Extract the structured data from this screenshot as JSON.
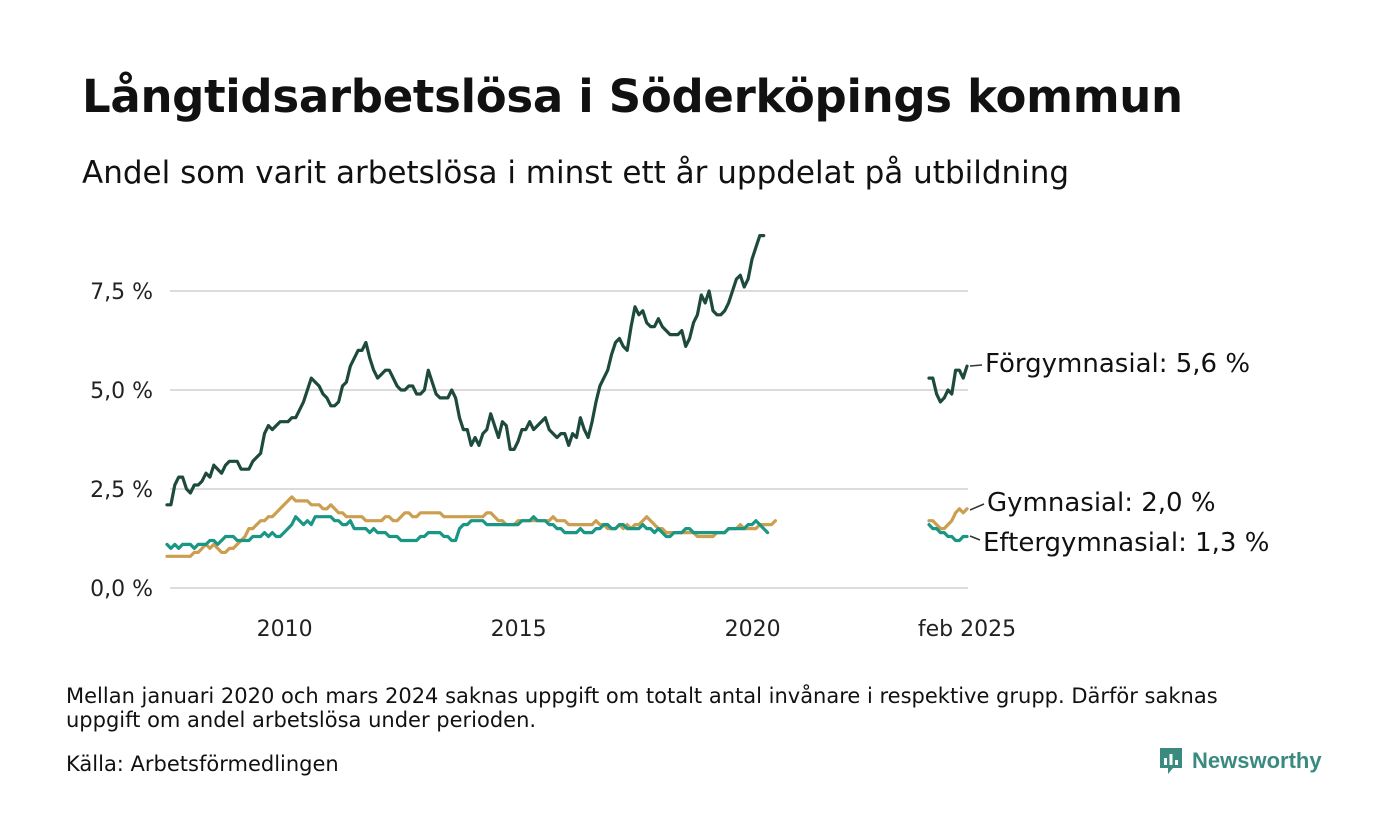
{
  "title": "Långtidsarbetslösa i Söderköpings kommun",
  "subtitle": "Andel som varit arbetslösa i minst ett år uppdelat på utbildning",
  "footnote": "Mellan januari 2020 och mars 2024 saknas uppgift om totalt antal invånare i respektive grupp. Därför saknas uppgift om andel arbetslösa under perioden.",
  "source": "Källa: Arbetsförmedlingen",
  "brand": "Newsworthy",
  "colors": {
    "forgymnasial": "#1e4a3e",
    "gymnasial": "#cc9e4f",
    "eftergymnasial": "#1a9684",
    "grid": "#dcdcdc",
    "brand": "#3a8a80"
  },
  "chart_data": {
    "type": "line",
    "y_tick_labels": [
      "0,0 %",
      "2,5 %",
      "5,0 %",
      "7,5 %"
    ],
    "y_ticks": [
      0,
      2.5,
      5.0,
      7.5
    ],
    "ylim": [
      0,
      9
    ],
    "x_tick_labels": [
      "2010",
      "2015",
      "2020",
      "feb 2025"
    ],
    "grid": "horizontal",
    "series": [
      {
        "name": "Förgymnasial",
        "label": "Förgymnasial: 5,6 %",
        "color_key": "forgymnasial",
        "segments": [
          {
            "from": "2008-01",
            "values": [
              2.1,
              2.1,
              2.6,
              2.8,
              2.8,
              2.5,
              2.4,
              2.6,
              2.6,
              2.7,
              2.9,
              2.8,
              3.1,
              3.0,
              2.9,
              3.1,
              3.2,
              3.2,
              3.2,
              3.0,
              3.0,
              3.0,
              3.2,
              3.3,
              3.4,
              3.9,
              4.1,
              4.0,
              4.1,
              4.2,
              4.2,
              4.2,
              4.3,
              4.3,
              4.5,
              4.7,
              5.0,
              5.3,
              5.2,
              5.1,
              4.9,
              4.8,
              4.6,
              4.6,
              4.7,
              5.1,
              5.2,
              5.6,
              5.8,
              6.0,
              6.0,
              6.2,
              5.8,
              5.5,
              5.3,
              5.4,
              5.5,
              5.5,
              5.3,
              5.1,
              5.0,
              5.0,
              5.1,
              5.1,
              4.9,
              4.9,
              5.0,
              5.5,
              5.2,
              4.9,
              4.8,
              4.8,
              4.8,
              5.0,
              4.8,
              4.3,
              4.0,
              4.0,
              3.6,
              3.8,
              3.6,
              3.9,
              4.0,
              4.4,
              4.1,
              3.8,
              4.2,
              4.1,
              3.5,
              3.5,
              3.7,
              4.0,
              4.0,
              4.2,
              4.0,
              4.1,
              4.2,
              4.3,
              4.0,
              3.9,
              3.8,
              3.9,
              3.9,
              3.6,
              3.9,
              3.8,
              4.3,
              4.0,
              3.8,
              4.2,
              4.7,
              5.1,
              5.3,
              5.5,
              5.9,
              6.2,
              6.3,
              6.1,
              6.0,
              6.6,
              7.1,
              6.9,
              7.0,
              6.7,
              6.6,
              6.6,
              6.8,
              6.6,
              6.5,
              6.4,
              6.4,
              6.4,
              6.5,
              6.1,
              6.3,
              6.7,
              6.9,
              7.4,
              7.2,
              7.5,
              7.0,
              6.9,
              6.9,
              7.0,
              7.2,
              7.5,
              7.8,
              7.9,
              7.6,
              7.8,
              8.3,
              8.6,
              8.9,
              8.9
            ]
          },
          {
            "from": "2024-03",
            "values": [
              5.3,
              5.3,
              4.9,
              4.7,
              4.8,
              5.0,
              4.9,
              5.5,
              5.5,
              5.3,
              5.6
            ]
          }
        ]
      },
      {
        "name": "Gymnasial",
        "label": "Gymnasial: 2,0 %",
        "color_key": "gymnasial",
        "segments": [
          {
            "from": "2008-01",
            "values": [
              0.8,
              0.8,
              0.8,
              0.8,
              0.8,
              0.8,
              0.8,
              0.9,
              0.9,
              1.0,
              1.1,
              1.0,
              1.1,
              1.0,
              0.9,
              0.9,
              1.0,
              1.0,
              1.1,
              1.2,
              1.3,
              1.5,
              1.5,
              1.6,
              1.7,
              1.7,
              1.8,
              1.8,
              1.9,
              2.0,
              2.1,
              2.2,
              2.3,
              2.2,
              2.2,
              2.2,
              2.2,
              2.1,
              2.1,
              2.1,
              2.0,
              2.0,
              2.1,
              2.0,
              1.9,
              1.9,
              1.8,
              1.8,
              1.8,
              1.8,
              1.8,
              1.7,
              1.7,
              1.7,
              1.7,
              1.7,
              1.8,
              1.8,
              1.7,
              1.7,
              1.8,
              1.9,
              1.9,
              1.8,
              1.8,
              1.9,
              1.9,
              1.9,
              1.9,
              1.9,
              1.9,
              1.8,
              1.8,
              1.8,
              1.8,
              1.8,
              1.8,
              1.8,
              1.8,
              1.8,
              1.8,
              1.8,
              1.9,
              1.9,
              1.8,
              1.7,
              1.7,
              1.6,
              1.6,
              1.6,
              1.7,
              1.7,
              1.7,
              1.7,
              1.7,
              1.7,
              1.7,
              1.7,
              1.7,
              1.8,
              1.7,
              1.7,
              1.7,
              1.6,
              1.6,
              1.6,
              1.6,
              1.6,
              1.6,
              1.6,
              1.7,
              1.6,
              1.6,
              1.5,
              1.5,
              1.5,
              1.6,
              1.5,
              1.6,
              1.5,
              1.6,
              1.6,
              1.7,
              1.8,
              1.7,
              1.6,
              1.5,
              1.5,
              1.4,
              1.4,
              1.4,
              1.4,
              1.4,
              1.4,
              1.4,
              1.4,
              1.3,
              1.3,
              1.3,
              1.3,
              1.3,
              1.4,
              1.4,
              1.4,
              1.5,
              1.5,
              1.5,
              1.6,
              1.5,
              1.5,
              1.5,
              1.5,
              1.6,
              1.6,
              1.6,
              1.6,
              1.7
            ]
          },
          {
            "from": "2024-03",
            "values": [
              1.7,
              1.7,
              1.6,
              1.5,
              1.5,
              1.6,
              1.7,
              1.9,
              2.0,
              1.9,
              2.0
            ]
          }
        ]
      },
      {
        "name": "Eftergymnasial",
        "label": "Eftergymnasial: 1,3 %",
        "color_key": "eftergymnasial",
        "segments": [
          {
            "from": "2008-01",
            "values": [
              1.1,
              1.0,
              1.1,
              1.0,
              1.1,
              1.1,
              1.1,
              1.0,
              1.1,
              1.1,
              1.1,
              1.2,
              1.2,
              1.1,
              1.2,
              1.3,
              1.3,
              1.3,
              1.2,
              1.2,
              1.2,
              1.2,
              1.3,
              1.3,
              1.3,
              1.4,
              1.3,
              1.4,
              1.3,
              1.3,
              1.4,
              1.5,
              1.6,
              1.8,
              1.7,
              1.6,
              1.7,
              1.6,
              1.8,
              1.8,
              1.8,
              1.8,
              1.8,
              1.7,
              1.7,
              1.6,
              1.6,
              1.7,
              1.5,
              1.5,
              1.5,
              1.5,
              1.4,
              1.5,
              1.4,
              1.4,
              1.4,
              1.3,
              1.3,
              1.3,
              1.2,
              1.2,
              1.2,
              1.2,
              1.2,
              1.3,
              1.3,
              1.4,
              1.4,
              1.4,
              1.4,
              1.3,
              1.3,
              1.2,
              1.2,
              1.5,
              1.6,
              1.6,
              1.7,
              1.7,
              1.7,
              1.7,
              1.6,
              1.6,
              1.6,
              1.6,
              1.6,
              1.6,
              1.6,
              1.6,
              1.6,
              1.7,
              1.7,
              1.7,
              1.8,
              1.7,
              1.7,
              1.7,
              1.6,
              1.6,
              1.5,
              1.5,
              1.4,
              1.4,
              1.4,
              1.4,
              1.5,
              1.4,
              1.4,
              1.4,
              1.5,
              1.5,
              1.6,
              1.6,
              1.5,
              1.5,
              1.6,
              1.6,
              1.5,
              1.5,
              1.5,
              1.5,
              1.6,
              1.5,
              1.5,
              1.4,
              1.5,
              1.4,
              1.3,
              1.3,
              1.4,
              1.4,
              1.4,
              1.5,
              1.5,
              1.4,
              1.4,
              1.4,
              1.4,
              1.4,
              1.4,
              1.4,
              1.4,
              1.4,
              1.5,
              1.5,
              1.5,
              1.5,
              1.5,
              1.6,
              1.6,
              1.7,
              1.6,
              1.5,
              1.4
            ]
          },
          {
            "from": "2024-03",
            "values": [
              1.6,
              1.5,
              1.5,
              1.4,
              1.4,
              1.3,
              1.3,
              1.2,
              1.2,
              1.3,
              1.3
            ]
          }
        ]
      }
    ]
  }
}
